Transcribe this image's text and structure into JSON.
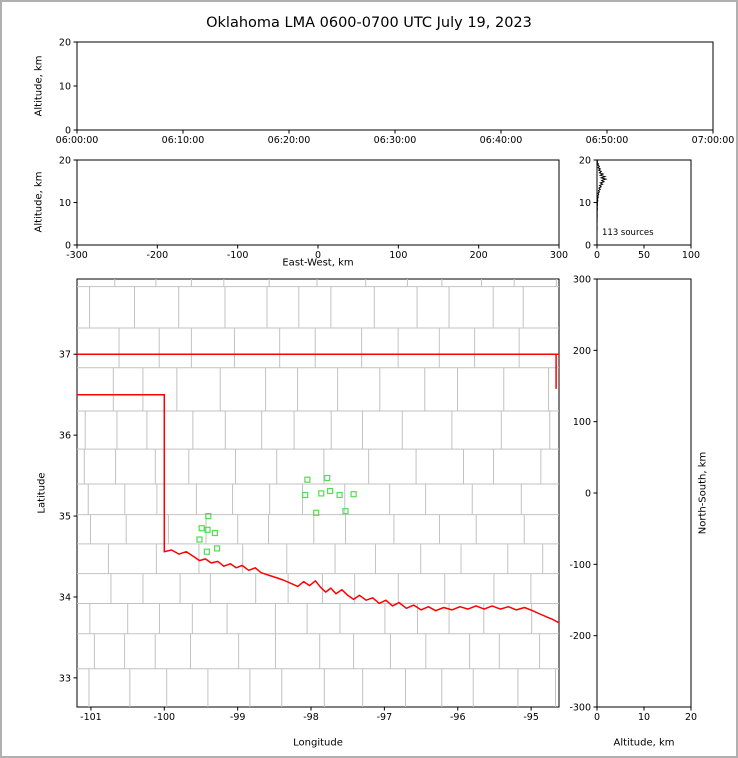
{
  "title": "Oklahoma LMA 0600-0700 UTC July 19, 2023",
  "colors": {
    "axis": "#000000",
    "county_line": "#c2c2c2",
    "state_border": "#ff0000",
    "source_marker": "#52dd52",
    "histogram_trace": "#000000"
  },
  "chart_data": [
    {
      "type": "scatter",
      "name": "altitude-vs-time",
      "title": "",
      "xlabel": "",
      "ylabel": "Altitude, km",
      "x_tick_labels": [
        "06:00:00",
        "06:10:00",
        "06:20:00",
        "06:30:00",
        "06:40:00",
        "06:50:00",
        "07:00:00"
      ],
      "ylim": [
        0,
        20
      ],
      "yticks": [
        0,
        10,
        20
      ],
      "points": []
    },
    {
      "type": "scatter",
      "name": "altitude-vs-east-west",
      "xlabel": "East-West, km",
      "ylabel": "Altitude, km",
      "xlim": [
        -300,
        300
      ],
      "xticks": [
        -300,
        -200,
        -100,
        0,
        100,
        200,
        300
      ],
      "ylim": [
        0,
        20
      ],
      "yticks": [
        0,
        10,
        20
      ],
      "points": []
    },
    {
      "type": "line",
      "name": "source-count-vs-altitude",
      "annotation": "113 sources",
      "xlim": [
        0,
        100
      ],
      "xticks": [
        0,
        50,
        100
      ],
      "ylim": [
        0,
        20
      ],
      "yticks": [
        0,
        10,
        20
      ],
      "points_count_altitude": [
        [
          0,
          20
        ],
        [
          0.5,
          19.7
        ],
        [
          0.2,
          19.4
        ],
        [
          1.5,
          19.1
        ],
        [
          0.8,
          18.8
        ],
        [
          2.5,
          18.5
        ],
        [
          1.2,
          18.2
        ],
        [
          3.5,
          17.9
        ],
        [
          1.8,
          17.6
        ],
        [
          4.5,
          17.3
        ],
        [
          2.5,
          17.0
        ],
        [
          6.5,
          16.7
        ],
        [
          3.5,
          16.4
        ],
        [
          8.5,
          16.1
        ],
        [
          4.5,
          15.8
        ],
        [
          9.5,
          15.5
        ],
        [
          5.0,
          15.2
        ],
        [
          7.5,
          14.9
        ],
        [
          3.5,
          14.6
        ],
        [
          6.0,
          14.3
        ],
        [
          2.8,
          14.0
        ],
        [
          4.5,
          13.7
        ],
        [
          2.0,
          13.4
        ],
        [
          3.5,
          13.1
        ],
        [
          1.5,
          12.8
        ],
        [
          2.5,
          12.5
        ],
        [
          1.0,
          12.2
        ],
        [
          1.8,
          11.9
        ],
        [
          0.8,
          11.6
        ],
        [
          1.2,
          11.2
        ],
        [
          0.5,
          10.8
        ],
        [
          0.8,
          10.4
        ],
        [
          0.3,
          10.0
        ],
        [
          0.5,
          9.5
        ],
        [
          0.2,
          9.0
        ],
        [
          0.4,
          8.4
        ],
        [
          0.1,
          7.8
        ],
        [
          0.2,
          7.0
        ],
        [
          0.1,
          6.2
        ],
        [
          0.1,
          5.5
        ],
        [
          0,
          4.8
        ],
        [
          0.1,
          4.0
        ],
        [
          0,
          3.0
        ],
        [
          0,
          2.0
        ],
        [
          0,
          1.0
        ],
        [
          0,
          0
        ]
      ]
    },
    {
      "type": "scatter",
      "name": "plan-view-map",
      "xlabel": "Longitude",
      "ylabel": "Latitude",
      "xlim": [
        -101.19,
        -94.62
      ],
      "xticks": [
        -101,
        -100,
        -99,
        -98,
        -97,
        -96,
        -95
      ],
      "ylim": [
        32.64,
        37.93
      ],
      "yticks": [
        33,
        34,
        35,
        36,
        37
      ],
      "sources_lon_lat": [
        [
          -98.05,
          35.45
        ],
        [
          -97.78,
          35.47
        ],
        [
          -98.08,
          35.26
        ],
        [
          -97.86,
          35.28
        ],
        [
          -97.74,
          35.31
        ],
        [
          -97.61,
          35.26
        ],
        [
          -97.42,
          35.27
        ],
        [
          -97.93,
          35.04
        ],
        [
          -97.53,
          35.06
        ],
        [
          -99.4,
          35.0
        ],
        [
          -99.49,
          34.85
        ],
        [
          -99.41,
          34.83
        ],
        [
          -99.31,
          34.79
        ],
        [
          -99.52,
          34.71
        ],
        [
          -99.42,
          34.56
        ],
        [
          -99.28,
          34.6
        ]
      ],
      "state_boundary_lon_lat": [
        [
          [
            -101.19,
            37.0
          ],
          [
            -94.62,
            37.0
          ]
        ],
        [
          [
            -101.19,
            36.5
          ],
          [
            -100.0,
            36.5
          ]
        ],
        [
          [
            -100.0,
            36.5
          ],
          [
            -100.0,
            34.56
          ]
        ],
        [
          [
            -94.66,
            37.0
          ],
          [
            -94.66,
            36.58
          ]
        ],
        [
          [
            -100.0,
            34.56
          ],
          [
            -99.9,
            34.58
          ],
          [
            -99.8,
            34.53
          ],
          [
            -99.7,
            34.56
          ],
          [
            -99.6,
            34.5
          ],
          [
            -99.52,
            34.45
          ],
          [
            -99.44,
            34.47
          ],
          [
            -99.36,
            34.42
          ],
          [
            -99.27,
            34.44
          ],
          [
            -99.19,
            34.38
          ],
          [
            -99.1,
            34.41
          ],
          [
            -99.02,
            34.36
          ],
          [
            -98.94,
            34.39
          ],
          [
            -98.85,
            34.33
          ],
          [
            -98.76,
            34.36
          ],
          [
            -98.68,
            34.3
          ],
          [
            -98.58,
            34.27
          ],
          [
            -98.48,
            34.24
          ],
          [
            -98.38,
            34.21
          ],
          [
            -98.28,
            34.17
          ],
          [
            -98.18,
            34.13
          ],
          [
            -98.1,
            34.19
          ],
          [
            -98.02,
            34.14
          ],
          [
            -97.94,
            34.2
          ],
          [
            -97.87,
            34.12
          ],
          [
            -97.8,
            34.06
          ],
          [
            -97.73,
            34.11
          ],
          [
            -97.66,
            34.04
          ],
          [
            -97.58,
            34.09
          ],
          [
            -97.5,
            34.02
          ],
          [
            -97.42,
            33.97
          ],
          [
            -97.34,
            34.02
          ],
          [
            -97.25,
            33.96
          ],
          [
            -97.16,
            33.99
          ],
          [
            -97.07,
            33.92
          ],
          [
            -96.98,
            33.96
          ],
          [
            -96.89,
            33.89
          ],
          [
            -96.8,
            33.93
          ],
          [
            -96.7,
            33.86
          ],
          [
            -96.6,
            33.9
          ],
          [
            -96.5,
            33.84
          ],
          [
            -96.4,
            33.88
          ],
          [
            -96.3,
            33.83
          ],
          [
            -96.19,
            33.87
          ],
          [
            -96.08,
            33.84
          ],
          [
            -95.97,
            33.88
          ],
          [
            -95.86,
            33.85
          ],
          [
            -95.75,
            33.89
          ],
          [
            -95.64,
            33.85
          ],
          [
            -95.53,
            33.89
          ],
          [
            -95.42,
            33.85
          ],
          [
            -95.31,
            33.88
          ],
          [
            -95.2,
            33.84
          ],
          [
            -95.09,
            33.87
          ],
          [
            -94.98,
            33.83
          ],
          [
            -94.88,
            33.79
          ],
          [
            -94.78,
            33.75
          ],
          [
            -94.7,
            33.72
          ],
          [
            -94.62,
            33.68
          ]
        ]
      ]
    },
    {
      "type": "scatter",
      "name": "north-south-vs-altitude",
      "xlabel": "Altitude, km",
      "ylabel": "North-South, km",
      "xlim": [
        0,
        20
      ],
      "xticks": [
        0,
        10,
        20
      ],
      "ylim": [
        -300,
        300
      ],
      "yticks": [
        -300,
        -200,
        -100,
        0,
        100,
        200,
        300
      ],
      "points": []
    }
  ]
}
